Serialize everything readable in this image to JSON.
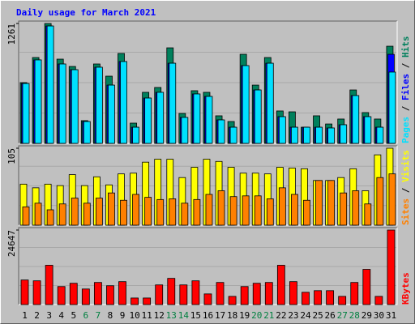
{
  "title": "Daily usage for March 2021",
  "legend_separator": " / ",
  "x_axis": {
    "categories": [
      "1",
      "2",
      "3",
      "4",
      "5",
      "6",
      "7",
      "8",
      "9",
      "10",
      "11",
      "12",
      "13",
      "14",
      "15",
      "16",
      "17",
      "18",
      "19",
      "20",
      "21",
      "22",
      "23",
      "24",
      "25",
      "26",
      "27",
      "28",
      "29",
      "30",
      "31"
    ],
    "colors": [
      "#000000",
      "#000000",
      "#000000",
      "#000000",
      "#000000",
      "#008040",
      "#008040",
      "#000000",
      "#000000",
      "#000000",
      "#000000",
      "#000000",
      "#008040",
      "#008040",
      "#000000",
      "#000000",
      "#000000",
      "#000000",
      "#000000",
      "#008040",
      "#008040",
      "#000000",
      "#000000",
      "#000000",
      "#000000",
      "#000000",
      "#008040",
      "#008040",
      "#000000",
      "#000000",
      "#000000"
    ]
  },
  "chart_data": [
    {
      "type": "bar",
      "ylim": [
        0,
        1261
      ],
      "yticks": [
        1261
      ],
      "series": [
        {
          "name": "Hits",
          "color": "#00805c",
          "values": [
            639,
            903,
            1261,
            886,
            809,
            239,
            835,
            707,
            946,
            213,
            537,
            588,
            1005,
            315,
            554,
            537,
            290,
            230,
            937,
            613,
            903,
            341,
            332,
            170,
            290,
            204,
            256,
            562,
            324,
            256,
            1022
          ]
        },
        {
          "name": "Files",
          "color": "#0000ff",
          "values": [
            630,
            878,
            1235,
            835,
            775,
            230,
            801,
            613,
            861,
            170,
            477,
            537,
            843,
            273,
            520,
            494,
            247,
            170,
            818,
            562,
            843,
            281,
            170,
            170,
            170,
            162,
            196,
            503,
            281,
            170,
            937
          ]
        },
        {
          "name": "Pages",
          "color": "#00e0ff",
          "values": [
            630,
            878,
            1235,
            835,
            775,
            230,
            801,
            613,
            861,
            170,
            477,
            537,
            843,
            273,
            520,
            494,
            247,
            170,
            818,
            562,
            843,
            281,
            170,
            170,
            170,
            162,
            196,
            503,
            281,
            170,
            750
          ]
        }
      ]
    },
    {
      "type": "bar",
      "ylim": [
        0,
        105
      ],
      "yticks": [
        105
      ],
      "series": [
        {
          "name": "Visits",
          "color": "#ffff00",
          "values": [
            56,
            51,
            56,
            54,
            69,
            54,
            66,
            55,
            70,
            71,
            86,
            90,
            90,
            65,
            79,
            90,
            87,
            79,
            71,
            71,
            70,
            79,
            78,
            77,
            61,
            61,
            65,
            77,
            47,
            96,
            105
          ]
        },
        {
          "name": "Sites",
          "color": "#ff8000",
          "values": [
            25,
            30,
            21,
            29,
            37,
            30,
            37,
            44,
            34,
            42,
            38,
            35,
            36,
            30,
            35,
            42,
            47,
            39,
            40,
            40,
            36,
            51,
            42,
            34,
            61,
            61,
            44,
            47,
            29,
            65,
            70
          ]
        }
      ]
    },
    {
      "type": "bar",
      "ylim": [
        0,
        24647
      ],
      "yticks": [
        24647
      ],
      "series": [
        {
          "name": "KBytes",
          "color": "#ff0000",
          "values": [
            8125,
            7855,
            13001,
            5959,
            7042,
            5146,
            7313,
            6229,
            7584,
            2167,
            2167,
            6500,
            8667,
            6500,
            7855,
            3521,
            7313,
            2708,
            5959,
            7042,
            7313,
            13001,
            7584,
            4063,
            4604,
            4604,
            2708,
            7313,
            11646,
            2708,
            24647
          ]
        }
      ]
    }
  ]
}
